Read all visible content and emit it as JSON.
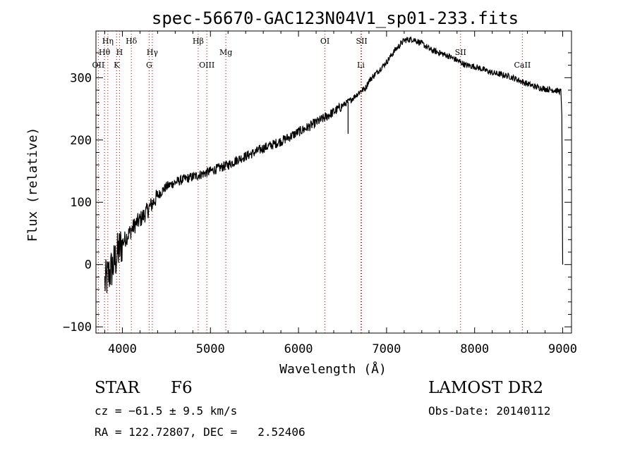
{
  "chart_data": {
    "type": "line",
    "title": "spec-56670-GAC123N04V1_sp01-233.fits",
    "xlabel": "Wavelength (Å)",
    "ylabel": "Flux (relative)",
    "xlim": [
      3700,
      9100
    ],
    "ylim": [
      -110,
      375
    ],
    "x_ticks": [
      4000,
      5000,
      6000,
      7000,
      8000,
      9000
    ],
    "y_ticks": [
      -100,
      0,
      100,
      200,
      300
    ],
    "grid": false,
    "line_color": "#000000",
    "marker_color": "#b00000",
    "series": [
      {
        "x": [
          3800,
          3850,
          3900,
          3950,
          4000,
          4050,
          4100,
          4150,
          4200,
          4250,
          4300,
          4350,
          4400,
          4450,
          4500,
          4600,
          4700,
          4800,
          4900,
          5000,
          5100,
          5200,
          5300,
          5400,
          5500,
          5600,
          5700,
          5800,
          5900,
          6000,
          6100,
          6200,
          6300,
          6400,
          6500,
          6600,
          6700,
          6760,
          6800,
          6900,
          7000,
          7100,
          7200,
          7300,
          7400,
          7500,
          7600,
          7700,
          7800,
          7900,
          8000,
          8100,
          8200,
          8300,
          8400,
          8500,
          8600,
          8700,
          8800,
          8900,
          8980,
          8990,
          9000
        ],
        "y": [
          -30,
          -15,
          0,
          20,
          35,
          45,
          55,
          65,
          72,
          80,
          90,
          100,
          110,
          118,
          125,
          132,
          137,
          141,
          145,
          150,
          155,
          160,
          168,
          174,
          180,
          187,
          192,
          198,
          205,
          213,
          220,
          228,
          236,
          245,
          255,
          265,
          278,
          283,
          295,
          310,
          325,
          345,
          360,
          362,
          355,
          345,
          340,
          335,
          328,
          320,
          318,
          313,
          308,
          305,
          302,
          296,
          290,
          285,
          282,
          280,
          278,
          240,
          0
        ]
      }
    ],
    "absorption_x": [
      6563
    ],
    "absorption_y": [
      210
    ]
  },
  "line_markers": [
    {
      "label": "OII",
      "wl": 3727,
      "row": 3
    },
    {
      "label": "Hθ",
      "wl": 3797,
      "row": 2
    },
    {
      "label": "Hη",
      "wl": 3835,
      "row": 1
    },
    {
      "label": "H",
      "wl": 3968,
      "row": 2
    },
    {
      "label": "K",
      "wl": 3934,
      "row": 3
    },
    {
      "label": "Hδ",
      "wl": 4102,
      "row": 1
    },
    {
      "label": "Hγ",
      "wl": 4340,
      "row": 2
    },
    {
      "label": "G",
      "wl": 4304,
      "row": 3
    },
    {
      "label": "Hβ",
      "wl": 4861,
      "row": 1
    },
    {
      "label": "OIII",
      "wl": 4959,
      "row": 3
    },
    {
      "label": "Mg",
      "wl": 5175,
      "row": 2
    },
    {
      "label": "OI",
      "wl": 6300,
      "row": 1
    },
    {
      "label": "SII",
      "wl": 6717,
      "row": 1
    },
    {
      "label": "Li",
      "wl": 6708,
      "row": 3
    },
    {
      "label": "SII",
      "wl": 7840,
      "row": 2
    },
    {
      "label": "CaII",
      "wl": 8542,
      "row": 3
    }
  ],
  "info": {
    "object_class": "STAR",
    "subclass": "F6",
    "survey": "LAMOST DR2",
    "velocity": "cz = −61.5 ± 9.5 km/s",
    "obs_date": "Obs-Date: 20140112",
    "coords": "RA = 122.72807, DEC =   2.52406"
  }
}
